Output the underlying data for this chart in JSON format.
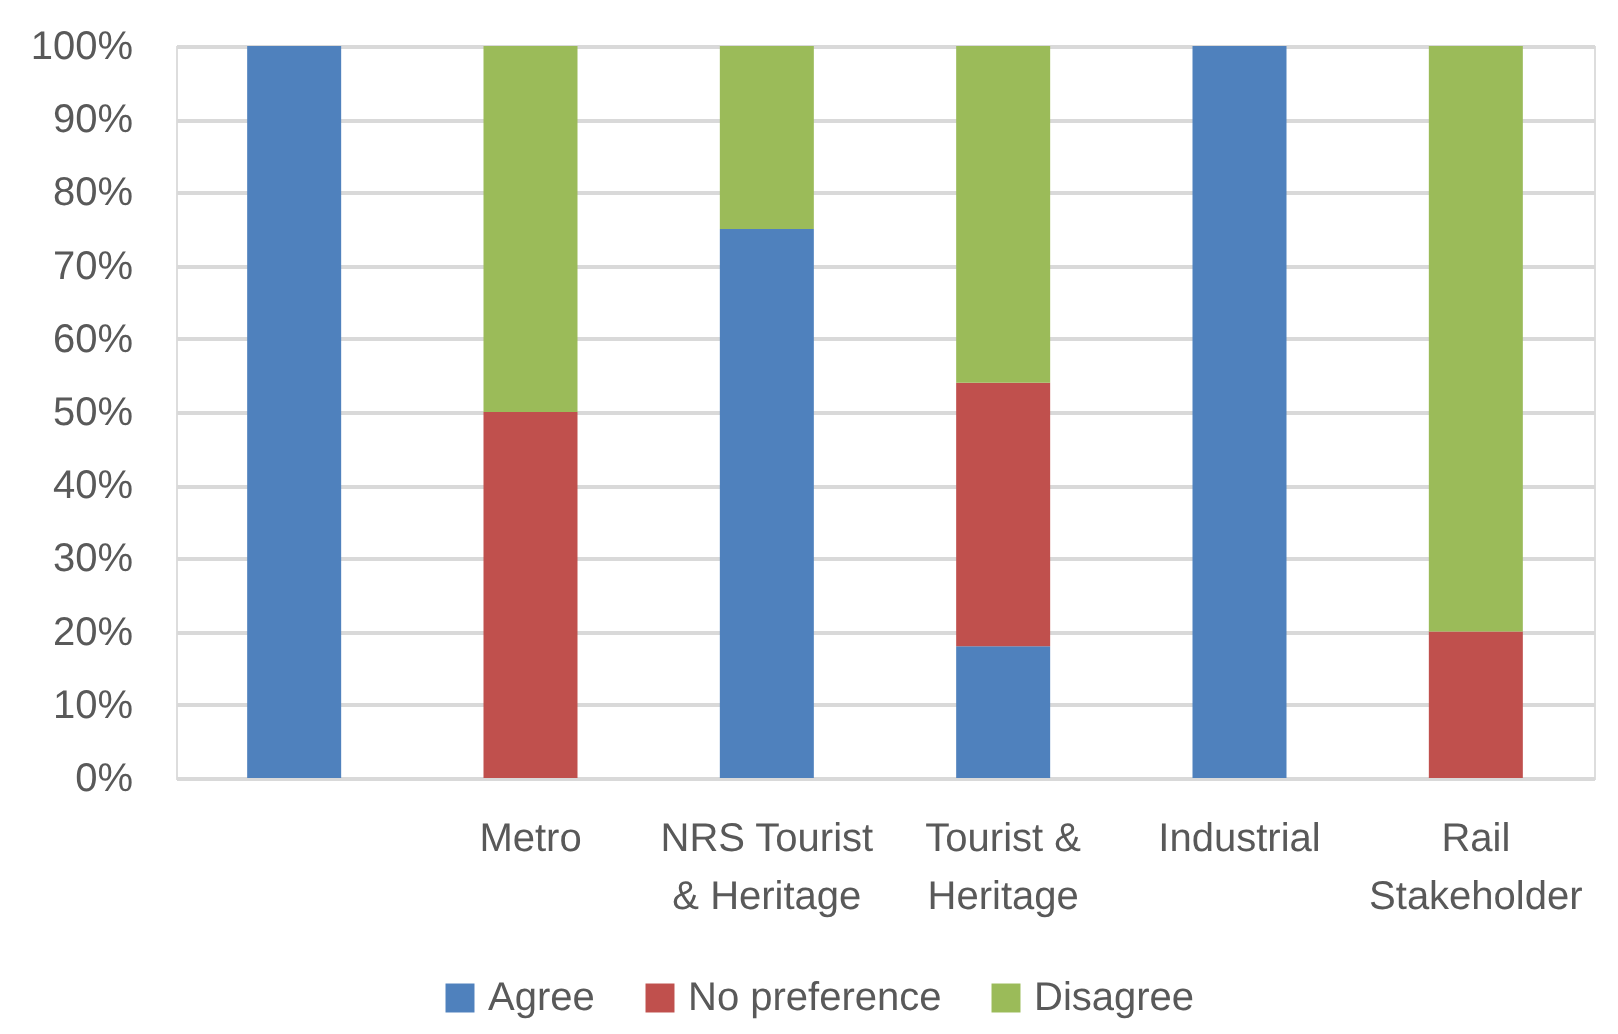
{
  "chart_data": {
    "type": "bar",
    "stacked": true,
    "categories": [
      null,
      "Metro",
      "NRS Tourist & Heritage",
      "Tourist & Heritage",
      "Industrial",
      "Rail Stakeholder"
    ],
    "series": [
      {
        "name": "Agree",
        "color": "#4f81bd",
        "values": [
          100,
          null,
          75,
          18,
          100,
          null
        ]
      },
      {
        "name": "No preference",
        "color": "#c0504d",
        "values": [
          null,
          50,
          null,
          36,
          null,
          20
        ]
      },
      {
        "name": "Disagree",
        "color": "#9bbb59",
        "values": [
          null,
          50,
          25,
          46,
          null,
          80
        ]
      }
    ],
    "ylim": [
      0,
      100
    ],
    "yticks": [
      {
        "value": 0,
        "label": "0%"
      },
      {
        "value": 10,
        "label": "10%"
      },
      {
        "value": 20,
        "label": "20%"
      },
      {
        "value": 30,
        "label": "30%"
      },
      {
        "value": 40,
        "label": "40%"
      },
      {
        "value": 50,
        "label": "50%"
      },
      {
        "value": 60,
        "label": "60%"
      },
      {
        "value": 70,
        "label": "70%"
      },
      {
        "value": 80,
        "label": "80%"
      },
      {
        "value": 90,
        "label": "90%"
      },
      {
        "value": 100,
        "label": "100%"
      }
    ],
    "grid": "y",
    "legend": "bottom"
  }
}
